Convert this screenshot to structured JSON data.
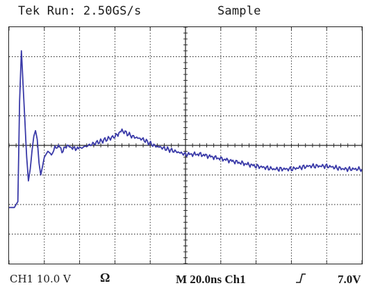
{
  "status": {
    "run": "Tek Run: 2.50GS/s",
    "mode": "Sample"
  },
  "footer": {
    "channel": "CH1  10.0 V",
    "coupling_symbol": "Ω",
    "timebase": "M 20.0ns Ch1",
    "trigger_level": "7.0V"
  },
  "icons": {
    "trigger": "rising-edge-icon"
  },
  "colors": {
    "trace": "#3a3aa8",
    "grid": "#202020"
  },
  "chart_data": {
    "type": "line",
    "xlim": [
      0,
      200
    ],
    "ylim": [
      -40,
      40
    ],
    "divisions": {
      "x": 10,
      "y": 8
    },
    "x": [
      0,
      3,
      5,
      6,
      7,
      8,
      9,
      10,
      11,
      12,
      13,
      14,
      15,
      16,
      17,
      18,
      19,
      20,
      22,
      24,
      26,
      28,
      30,
      33,
      36,
      40,
      45,
      50,
      55,
      60,
      64,
      70,
      76,
      82,
      88,
      94,
      100,
      108,
      116,
      124,
      132,
      140,
      150,
      160,
      170,
      180,
      190,
      200
    ],
    "y": [
      -21,
      -21,
      -19,
      15,
      32,
      20,
      8,
      -4,
      -12,
      -8,
      -2,
      3,
      5,
      2,
      -6,
      -10,
      -7,
      -4,
      -2,
      -3,
      -1,
      0,
      -2,
      0,
      -1,
      -1,
      0,
      1,
      2,
      3,
      5,
      3,
      2,
      0,
      -1,
      -2,
      -3,
      -3,
      -4,
      -5,
      -6,
      -7,
      -8,
      -8,
      -7,
      -7,
      -8,
      -8
    ]
  }
}
